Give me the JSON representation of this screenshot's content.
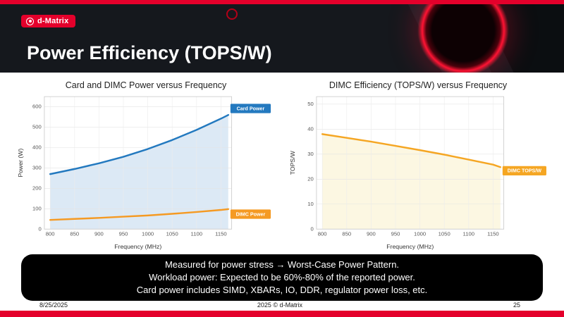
{
  "slide": {
    "logo_text": "d-Matrix",
    "title": "Power Efficiency (TOPS/W)",
    "notes": [
      "Measured for power stress → Worst-Case Power Pattern.",
      "Workload power: Expected to be 60%-80% of the reported power.",
      "Card power includes  SIMD, XBARs, IO, DDR, regulator power loss, etc."
    ],
    "footer": {
      "date": "8/25/2025",
      "copyright": "2025 © d-Matrix",
      "page": "25"
    },
    "colors": {
      "brand_red": "#e4002b",
      "header_bg": "#15181d",
      "card_power_blue": "#2379bf",
      "dimc_orange": "#f59a23"
    }
  },
  "chart_data": [
    {
      "type": "line",
      "title": "Card and DIMC Power versus Frequency",
      "xlabel": "Frequency (MHz)",
      "ylabel": "Power (W)",
      "xlim": [
        788,
        1172
      ],
      "ylim": [
        0,
        650
      ],
      "xticks": [
        800,
        850,
        900,
        950,
        1000,
        1050,
        1100,
        1150
      ],
      "yticks": [
        0,
        100,
        200,
        300,
        400,
        500,
        600
      ],
      "grid": true,
      "legend_position": "end-of-line-labels",
      "x": [
        800,
        850,
        900,
        950,
        1000,
        1050,
        1100,
        1150,
        1165
      ],
      "series": [
        {
          "name": "Card Power",
          "color": "#2379bf",
          "fill": "#dce9f5",
          "label_dy": -9,
          "values": [
            270,
            295,
            323,
            355,
            393,
            437,
            487,
            542,
            560
          ]
        },
        {
          "name": "DIMC Power",
          "color": "#f59a23",
          "fill": null,
          "label_dy": 7,
          "values": [
            45,
            50,
            55,
            61,
            67,
            75,
            84,
            94,
            98
          ]
        }
      ]
    },
    {
      "type": "line",
      "title": "DIMC Efficiency (TOPS/W) versus Frequency",
      "xlabel": "Frequency (MHz)",
      "ylabel": "TOPS/W",
      "xlim": [
        788,
        1172
      ],
      "ylim": [
        0,
        53
      ],
      "xticks": [
        800,
        850,
        900,
        950,
        1000,
        1050,
        1100,
        1150
      ],
      "yticks": [
        0,
        10,
        20,
        30,
        40,
        50
      ],
      "grid": true,
      "legend_position": "end-of-line-labels",
      "x": [
        800,
        850,
        900,
        950,
        1000,
        1050,
        1100,
        1150,
        1165
      ],
      "series": [
        {
          "name": "DIMC TOPS/W",
          "color": "#f5a623",
          "fill": "#fcf7e2",
          "label_dy": 5,
          "values": [
            38,
            36.5,
            35,
            33.3,
            31.6,
            29.8,
            27.8,
            25.8,
            24.8
          ]
        }
      ]
    }
  ]
}
